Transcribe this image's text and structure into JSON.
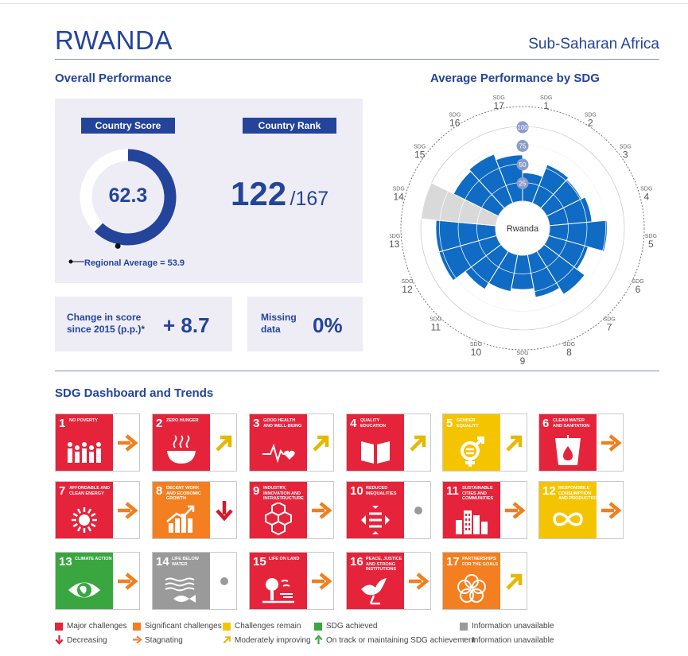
{
  "header": {
    "country": "RWANDA",
    "region": "Sub-Saharan Africa"
  },
  "overall": {
    "title": "Overall Performance",
    "score_label": "Country Score",
    "score": "62.3",
    "score_fraction": 0.623,
    "regional_avg_fraction": 0.539,
    "rank_label": "Country Rank",
    "rank": "122",
    "rank_total": "/167",
    "regional_avg_label": "Regional Average = 53.9",
    "change_label_1": "Change in score",
    "change_label_2": "since 2015 (p.p.)*",
    "change_value": "+ 8.7",
    "missing_label_1": "Missing",
    "missing_label_2": "data",
    "missing_value": "0%"
  },
  "radar": {
    "title": "Average Performance by SDG",
    "center_label": "Rwanda",
    "sdg_prefix": "SDG",
    "scale_labels": [
      "100",
      "75",
      "50",
      "25"
    ],
    "values": [
      38,
      55,
      52,
      57,
      77,
      55,
      68,
      58,
      46,
      50,
      60,
      80,
      80,
      60,
      67,
      70,
      62
    ],
    "missing": [
      14
    ],
    "colors": {
      "bar": "#0f6bc4",
      "missing": "#d9d9d9",
      "center": "#ffffff"
    }
  },
  "dashboard": {
    "title": "SDG Dashboard and Trends",
    "goals": [
      {
        "n": "1",
        "name": "No Poverty",
        "color": "#e5243b",
        "icon": "people-icon",
        "trend": "stagnating"
      },
      {
        "n": "2",
        "name": "Zero Hunger",
        "color": "#e5243b",
        "icon": "bowl-icon",
        "trend": "moderately-improving"
      },
      {
        "n": "3",
        "name": "Good Health and Well-Being",
        "color": "#e5243b",
        "icon": "heartbeat-icon",
        "trend": "moderately-improving"
      },
      {
        "n": "4",
        "name": "Quality Education",
        "color": "#e5243b",
        "icon": "book-icon",
        "trend": "moderately-improving"
      },
      {
        "n": "5",
        "name": "Gender Equality",
        "color": "#f5c400",
        "icon": "gender-icon",
        "trend": "moderately-improving"
      },
      {
        "n": "6",
        "name": "Clean Water and Sanitation",
        "color": "#e5243b",
        "icon": "water-icon",
        "trend": "stagnating"
      },
      {
        "n": "7",
        "name": "Affordable and Clean Energy",
        "color": "#e5243b",
        "icon": "sun-icon",
        "trend": "stagnating"
      },
      {
        "n": "8",
        "name": "Decent Work and Economic Growth",
        "color": "#f47f20",
        "icon": "growth-icon",
        "trend": "decreasing"
      },
      {
        "n": "9",
        "name": "Industry, Innovation and Infrastructure",
        "color": "#e5243b",
        "icon": "cubes-icon",
        "trend": "stagnating"
      },
      {
        "n": "10",
        "name": "Reduced Inequalities",
        "color": "#e5243b",
        "icon": "equality-icon",
        "trend": "unavailable"
      },
      {
        "n": "11",
        "name": "Sustainable Cities and Communities",
        "color": "#e5243b",
        "icon": "city-icon",
        "trend": "stagnating"
      },
      {
        "n": "12",
        "name": "Responsible Consumption and Production",
        "color": "#f5c400",
        "icon": "infinity-icon",
        "trend": "stagnating"
      },
      {
        "n": "13",
        "name": "Climate Action",
        "color": "#3aa640",
        "icon": "eye-globe-icon",
        "trend": "stagnating"
      },
      {
        "n": "14",
        "name": "Life Below Water",
        "color": "#9a9a9a",
        "icon": "fish-icon",
        "trend": "unavailable"
      },
      {
        "n": "15",
        "name": "Life on Land",
        "color": "#e5243b",
        "icon": "tree-icon",
        "trend": "stagnating"
      },
      {
        "n": "16",
        "name": "Peace, Justice and Strong Institutions",
        "color": "#e5243b",
        "icon": "dove-icon",
        "trend": "stagnating"
      },
      {
        "n": "17",
        "name": "Partnerships for the Goals",
        "color": "#f47f20",
        "icon": "rings-icon",
        "trend": "moderately-improving"
      }
    ]
  },
  "legend": {
    "status": [
      {
        "label": "Major challenges",
        "color": "#e5243b"
      },
      {
        "label": "Significant challenges",
        "color": "#f47f20"
      },
      {
        "label": "Challenges remain",
        "color": "#f5c400"
      },
      {
        "label": "SDG achieved",
        "color": "#3aa640"
      },
      {
        "label": "Information unavailable",
        "color": "#9a9a9a"
      }
    ],
    "trends": [
      {
        "label": "Decreasing",
        "trend": "decreasing"
      },
      {
        "label": "Stagnating",
        "trend": "stagnating"
      },
      {
        "label": "Moderately improving",
        "trend": "moderately-improving"
      },
      {
        "label": "On track or maintaining SDG achievement",
        "trend": "on-track"
      },
      {
        "label": "Information unavailable",
        "trend": "unavailable"
      }
    ]
  }
}
